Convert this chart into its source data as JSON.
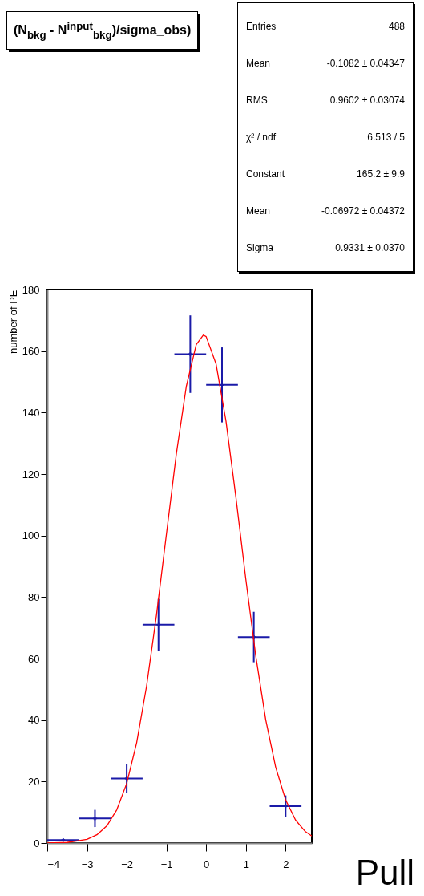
{
  "chart_data": {
    "type": "scatter",
    "title": "(N$_{bkg}$ - N$^{input}$$_{bkg}$)/sigma_obs)",
    "xlabel": "Pull",
    "ylabel": "number of PE",
    "annotations": [
      "Entries",
      "488",
      "Mean",
      "-0.1082 ± 0.04347",
      "RMS",
      "0.9602 ± 0.03074",
      "χ² / ndf",
      "6.513 / 5",
      "Constant",
      "165.2 ± 9.9",
      "Mean",
      "-0.06972 ± 0.04372",
      "Sigma",
      "0.9331 ± 0.0370"
    ],
    "xlim": [
      -4,
      2.66
    ],
    "xticks": [
      -4,
      -3,
      -2,
      -1,
      0,
      1,
      2
    ],
    "ylim": [
      0,
      180
    ],
    "yticks": [
      0,
      20,
      40,
      60,
      80,
      100,
      120,
      140,
      160,
      180
    ],
    "grid": false,
    "series": [
      {
        "type": "scatter",
        "marker": "cross",
        "color": "#1a1aa8",
        "x": [
          -3.6,
          -2.8,
          -2,
          -1.2,
          -0.4,
          0.4,
          1.2,
          2
        ],
        "values": [
          1,
          8,
          21,
          71,
          159,
          149,
          67,
          12
        ],
        "errors": [
          null,
          2.8,
          4.6,
          8.4,
          12.6,
          12.2,
          8.2,
          3.5
        ],
        "xerrors": [
          0.4,
          0.4,
          0.4,
          0.4,
          0.4,
          0.4,
          0.4,
          0.4
        ]
      },
      {
        "type": "line",
        "marker": "none",
        "color": "#ff0000",
        "x": [
          -4,
          -3.5,
          -3,
          -2.75,
          -2.5,
          -2.25,
          -2,
          -1.75,
          -1.5,
          -1.25,
          -1,
          -0.75,
          -0.5,
          -0.25,
          -0.07,
          0,
          0.25,
          0.5,
          0.75,
          1,
          1.25,
          1.5,
          1.75,
          2,
          2.25,
          2.5,
          2.66
        ],
        "values": [
          0,
          0.2,
          1.2,
          2.7,
          5.6,
          10.8,
          19.4,
          32.6,
          51,
          74.2,
          100.5,
          126.6,
          148.5,
          162.1,
          165.2,
          164.7,
          155.8,
          137.2,
          112.4,
          85.7,
          60.8,
          40.1,
          24.7,
          14.1,
          7.5,
          3.7,
          2.3
        ]
      }
    ]
  }
}
